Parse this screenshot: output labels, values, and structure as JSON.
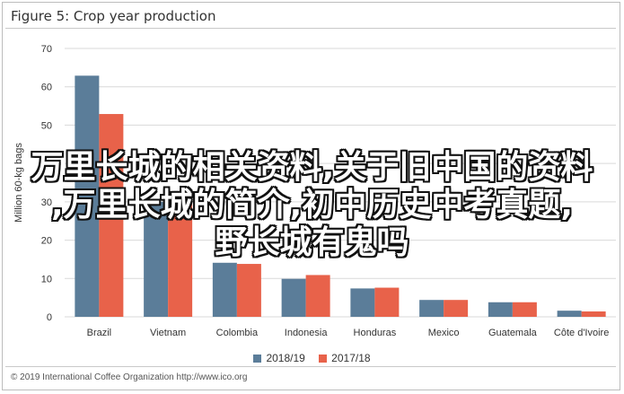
{
  "figure": {
    "title": "Figure 5: Crop year production",
    "footer": "© 2019 International Coffee Organization http://www.ico.org"
  },
  "overlay_text": [
    "万里长城的相关资料,关于旧中国的资料",
    ",万里长城的简介,初中历史中考真题,",
    "野长城有鬼吗"
  ],
  "chart_data": {
    "type": "bar",
    "title": "",
    "xlabel": "",
    "ylabel": "Million 60-kg bags",
    "ylim": [
      0,
      70
    ],
    "yticks": [
      0,
      10,
      20,
      30,
      40,
      50,
      60,
      70
    ],
    "grid": true,
    "legend": "bottom",
    "categories": [
      "Brazil",
      "Vietnam",
      "Colombia",
      "Indonesia",
      "Honduras",
      "Mexico",
      "Guatemala",
      "Côte d'Ivoire"
    ],
    "series": [
      {
        "name": "2018/19",
        "color": "#5b7d99",
        "values": [
          62.9,
          30.0,
          14.1,
          9.9,
          7.4,
          4.4,
          3.8,
          1.6
        ]
      },
      {
        "name": "2017/18",
        "color": "#e8624a",
        "values": [
          52.9,
          30.5,
          13.8,
          10.9,
          7.6,
          4.4,
          3.8,
          1.4
        ]
      }
    ]
  }
}
